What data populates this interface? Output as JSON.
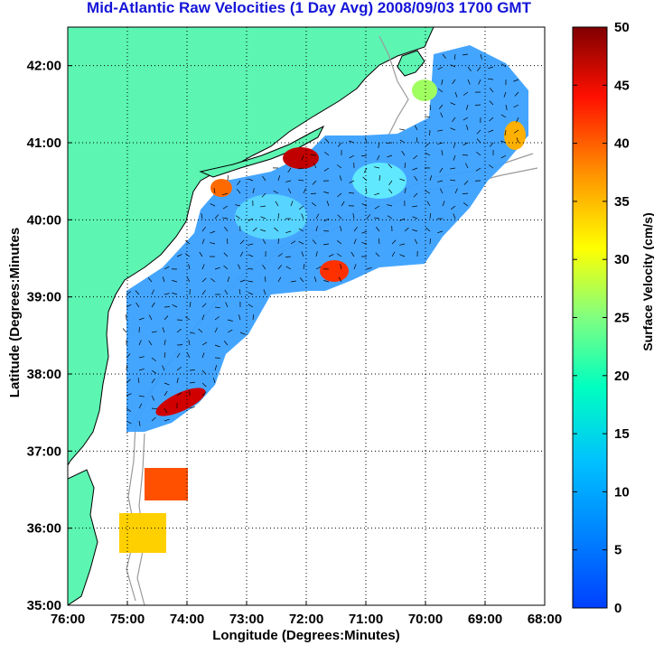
{
  "title": "Mid-Atlantic Raw Velocities (1 Day Avg) 2008/09/03 1700 GMT",
  "map": {
    "xlabel": "Longitude (Degrees:Minutes)",
    "ylabel": "Latitude (Degrees:Minutes",
    "lon_range": [
      -76,
      -68
    ],
    "lat_range": [
      35,
      42.5
    ],
    "x_ticks": [
      "76:00",
      "75:00",
      "74:00",
      "73:00",
      "72:00",
      "71:00",
      "70:00",
      "69:00",
      "68:00"
    ],
    "y_ticks": [
      "35:00",
      "36:00",
      "37:00",
      "38:00",
      "39:00",
      "40:00",
      "41:00",
      "42:00"
    ],
    "grid": "dotted",
    "land_color": "#5cf5b2",
    "ocean_color": "#ffffff",
    "bathymetry_color": "#9a9a9a"
  },
  "colorbar": {
    "label": "Surface Velocity (cm/s)",
    "ticks": [
      "0",
      "5",
      "10",
      "15",
      "20",
      "25",
      "30",
      "35",
      "40",
      "45",
      "50"
    ],
    "range": [
      0,
      50
    ],
    "colormap": "jet"
  }
}
